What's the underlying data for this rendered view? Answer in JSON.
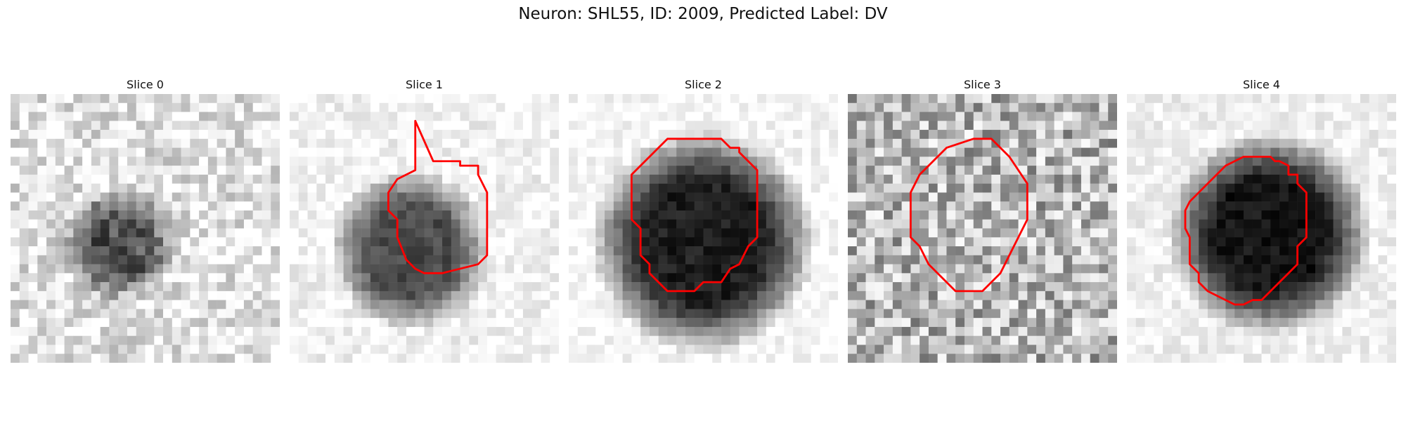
{
  "figure": {
    "title": "Neuron: SHL55, ID: 2009, Predicted Label: DV",
    "panels": [
      {
        "title": "Slice 0",
        "background": "#e0e0e0",
        "blob_radius": 0.22,
        "blob_center": [
          0.4,
          0.56
        ],
        "blob_darkness": 0.55,
        "noise": 0.35,
        "contour": false
      },
      {
        "title": "Slice 1",
        "background": "#f2f2f2",
        "blob_radius": 0.3,
        "blob_center": [
          0.45,
          0.58
        ],
        "blob_darkness": 0.65,
        "noise": 0.18,
        "contour": true
      },
      {
        "title": "Slice 2",
        "background": "#f7f7f7",
        "blob_radius": 0.42,
        "blob_center": [
          0.5,
          0.55
        ],
        "blob_darkness": 0.85,
        "noise": 0.16,
        "contour": true
      },
      {
        "title": "Slice 3",
        "background": "#b5b5b5",
        "blob_radius": 0.0,
        "blob_center": [
          0.5,
          0.55
        ],
        "blob_darkness": 0.1,
        "noise": 0.55,
        "contour": true
      },
      {
        "title": "Slice 4",
        "background": "#eeeeee",
        "blob_radius": 0.38,
        "blob_center": [
          0.53,
          0.52
        ],
        "blob_darkness": 0.85,
        "noise": 0.15,
        "contour": true
      }
    ],
    "contour_color": "#ff0000"
  }
}
